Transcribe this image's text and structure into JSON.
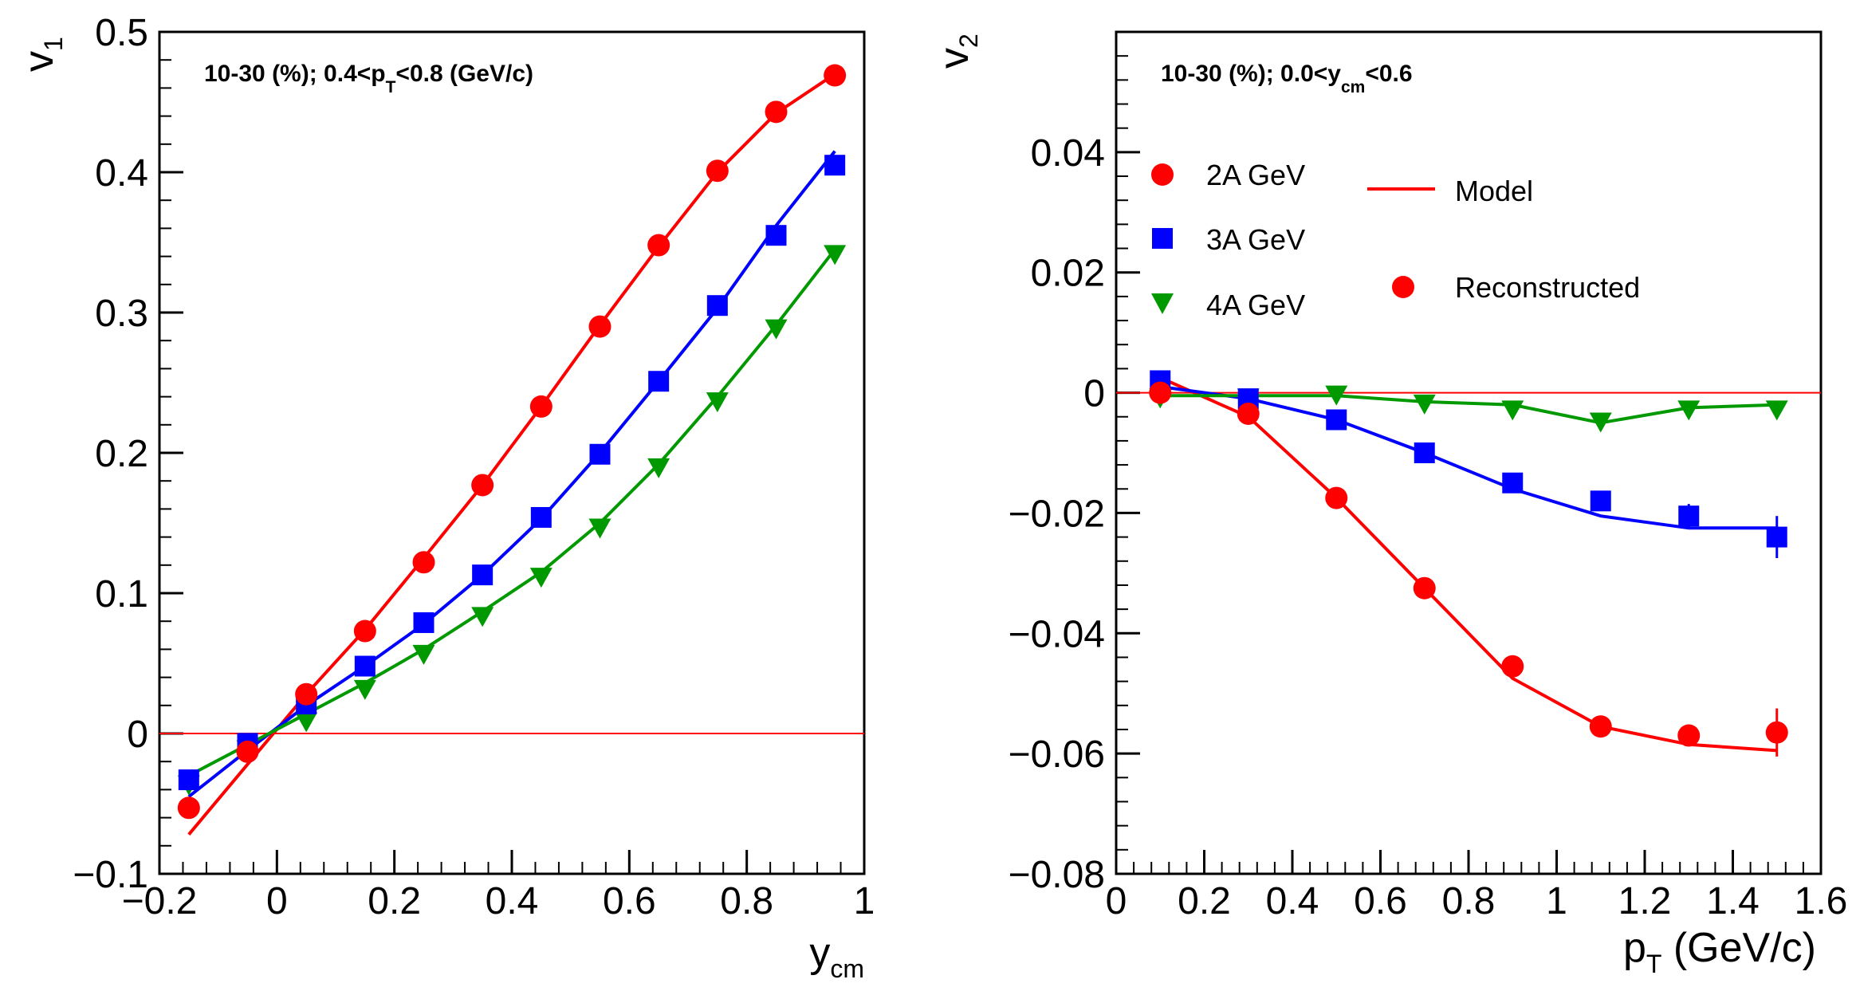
{
  "colors": {
    "red": "#ff0000",
    "blue": "#0000ff",
    "green": "#009900",
    "frame": "#000000"
  },
  "chart_data": [
    {
      "type": "scatter",
      "name": "v1 vs ycm",
      "ylabel_main": "v",
      "ylabel_sub": "1",
      "xlabel_main": "y",
      "xlabel_sub": "cm",
      "annotation": {
        "a": "10-30 (%); 0.4<p",
        "b": "T",
        "c": "<0.8 (GeV/c)"
      },
      "xlim": [
        -0.2,
        1.0
      ],
      "ylim": [
        -0.1,
        0.5
      ],
      "xticks": [
        -0.2,
        0,
        0.2,
        0.4,
        0.6,
        0.8,
        1
      ],
      "xtick_labels": [
        "−0.2",
        "0",
        "0.2",
        "0.4",
        "0.6",
        "0.8",
        "1"
      ],
      "yticks": [
        -0.1,
        0,
        0.1,
        0.2,
        0.3,
        0.4,
        0.5
      ],
      "ytick_labels": [
        "−0.1",
        "0",
        "0.1",
        "0.2",
        "0.3",
        "0.4",
        "0.5"
      ],
      "reference_line": 0,
      "series": [
        {
          "name": "2A GeV",
          "color": "red",
          "marker": "circle",
          "x": [
            -0.15,
            -0.05,
            0.05,
            0.15,
            0.25,
            0.35,
            0.45,
            0.55,
            0.65,
            0.75,
            0.85,
            0.95
          ],
          "y": [
            -0.053,
            -0.013,
            0.028,
            0.073,
            0.122,
            0.177,
            0.233,
            0.29,
            0.348,
            0.401,
            0.443,
            0.469
          ],
          "model_x": [
            -0.15,
            -0.05,
            0.05,
            0.15,
            0.25,
            0.35,
            0.45,
            0.55,
            0.65,
            0.75,
            0.85,
            0.95
          ],
          "model_y": [
            -0.072,
            -0.022,
            0.028,
            0.074,
            0.125,
            0.177,
            0.233,
            0.291,
            0.347,
            0.4,
            0.442,
            0.47
          ]
        },
        {
          "name": "3A GeV",
          "color": "blue",
          "marker": "square",
          "x": [
            -0.15,
            -0.05,
            0.05,
            0.15,
            0.25,
            0.35,
            0.45,
            0.55,
            0.65,
            0.75,
            0.85,
            0.95
          ],
          "y": [
            -0.033,
            -0.007,
            0.021,
            0.048,
            0.079,
            0.113,
            0.154,
            0.199,
            0.251,
            0.305,
            0.355,
            0.405
          ],
          "model_x": [
            -0.15,
            -0.05,
            0.05,
            0.15,
            0.25,
            0.35,
            0.45,
            0.55,
            0.65,
            0.75,
            0.85,
            0.95
          ],
          "model_y": [
            -0.045,
            -0.012,
            0.02,
            0.048,
            0.078,
            0.113,
            0.153,
            0.2,
            0.251,
            0.303,
            0.362,
            0.415
          ]
        },
        {
          "name": "4A GeV",
          "color": "green",
          "marker": "triangle-down",
          "x": [
            -0.15,
            -0.05,
            0.05,
            0.15,
            0.25,
            0.35,
            0.45,
            0.55,
            0.65,
            0.75,
            0.85,
            0.95
          ],
          "y": [
            -0.035,
            -0.01,
            0.01,
            0.033,
            0.058,
            0.085,
            0.113,
            0.148,
            0.191,
            0.238,
            0.29,
            0.343
          ],
          "model_x": [
            -0.15,
            -0.05,
            0.05,
            0.15,
            0.25,
            0.35,
            0.45,
            0.55,
            0.65,
            0.75,
            0.85,
            0.95
          ],
          "model_y": [
            -0.03,
            -0.008,
            0.014,
            0.036,
            0.06,
            0.087,
            0.115,
            0.15,
            0.192,
            0.24,
            0.291,
            0.345
          ]
        }
      ]
    },
    {
      "type": "scatter",
      "name": "v2 vs pT",
      "ylabel_main": "v",
      "ylabel_sub": "2",
      "xlabel_main": "p",
      "xlabel_sub": "T",
      "xlabel_tail": " (GeV/c)",
      "annotation": {
        "a": "10-30 (%); 0.0<y",
        "b": "cm",
        "c": "<0.6"
      },
      "xlim": [
        0,
        1.6
      ],
      "ylim": [
        -0.08,
        0.06
      ],
      "xticks": [
        0,
        0.2,
        0.4,
        0.6,
        0.8,
        1,
        1.2,
        1.4,
        1.6
      ],
      "xtick_labels": [
        "0",
        "0.2",
        "0.4",
        "0.6",
        "0.8",
        "1",
        "1.2",
        "1.4",
        "1.6"
      ],
      "yticks": [
        -0.08,
        -0.06,
        -0.04,
        -0.02,
        0,
        0.02,
        0.04
      ],
      "ytick_labels": [
        "−0.08",
        "−0.06",
        "−0.04",
        "−0.02",
        "0",
        "0.02",
        "0.04"
      ],
      "reference_line": 0,
      "legend": {
        "entries": [
          "2A GeV",
          "3A GeV",
          "4A GeV"
        ],
        "model_label": "Model",
        "reconstructed_label": "Reconstructed"
      },
      "series": [
        {
          "name": "2A GeV",
          "color": "red",
          "marker": "circle",
          "x": [
            0.1,
            0.3,
            0.5,
            0.7,
            0.9,
            1.1,
            1.3,
            1.5
          ],
          "y": [
            0.0,
            -0.0035,
            -0.0175,
            -0.0325,
            -0.0455,
            -0.0555,
            -0.057,
            -0.0565
          ],
          "err": [
            0.0008,
            0.0008,
            0.0008,
            0.0008,
            0.0008,
            0.001,
            0.0018,
            0.004
          ],
          "model_x": [
            0.1,
            0.3,
            0.5,
            0.7,
            0.9,
            1.1,
            1.3,
            1.5
          ],
          "model_y": [
            0.0025,
            -0.004,
            -0.0175,
            -0.0325,
            -0.0475,
            -0.0555,
            -0.0585,
            -0.0595
          ]
        },
        {
          "name": "3A GeV",
          "color": "blue",
          "marker": "square",
          "x": [
            0.1,
            0.3,
            0.5,
            0.7,
            0.9,
            1.1,
            1.3,
            1.5
          ],
          "y": [
            0.002,
            -0.001,
            -0.0045,
            -0.01,
            -0.015,
            -0.018,
            -0.0205,
            -0.024
          ],
          "err": [
            0.0006,
            0.0006,
            0.0006,
            0.0006,
            0.0008,
            0.001,
            0.002,
            0.0035
          ],
          "model_x": [
            0.1,
            0.3,
            0.5,
            0.7,
            0.9,
            1.1,
            1.3,
            1.5
          ],
          "model_y": [
            0.001,
            -0.001,
            -0.0045,
            -0.01,
            -0.016,
            -0.0205,
            -0.0225,
            -0.0225
          ]
        },
        {
          "name": "4A GeV",
          "color": "green",
          "marker": "triangle-down",
          "x": [
            0.1,
            0.3,
            0.5,
            0.7,
            0.9,
            1.1,
            1.3,
            1.5
          ],
          "y": [
            -0.0005,
            -0.0005,
            0.0,
            -0.0015,
            -0.0025,
            -0.0045,
            -0.0025,
            -0.0025
          ],
          "err": [
            0.0005,
            0.0005,
            0.0005,
            0.0005,
            0.0005,
            0.0007,
            0.001,
            0.001
          ],
          "model_x": [
            0.1,
            0.3,
            0.5,
            0.7,
            0.9,
            1.1,
            1.3,
            1.5
          ],
          "model_y": [
            -0.0005,
            -0.0005,
            -0.0005,
            -0.0015,
            -0.002,
            -0.005,
            -0.0025,
            -0.002
          ]
        }
      ]
    }
  ]
}
